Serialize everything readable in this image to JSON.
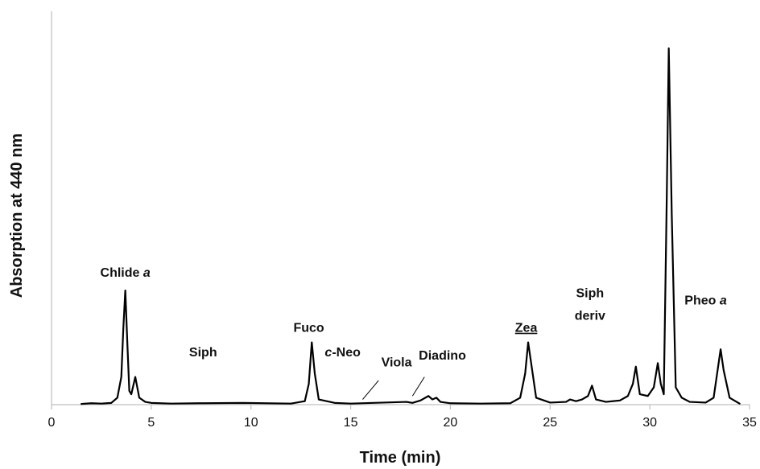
{
  "chart_data": {
    "type": "line",
    "title": "",
    "xlabel": "Time (min)",
    "ylabel": "Absorption at 440 nm",
    "xlim": [
      0,
      35
    ],
    "ylim": [
      0,
      100
    ],
    "x_ticks": [
      0,
      5,
      10,
      15,
      20,
      25,
      30,
      35
    ],
    "y_ticks_shown": false,
    "grid": false,
    "legend": "none",
    "line_color": "#000000",
    "series": [
      {
        "x": [
          1.5,
          2.0,
          2.5,
          3.0,
          3.3,
          3.5,
          3.6,
          3.7,
          3.8,
          3.9,
          4.0,
          4.2,
          4.4,
          4.7,
          5.0,
          6.0,
          7.4,
          9.6,
          12.0,
          12.7,
          12.9,
          13.05,
          13.2,
          13.4,
          13.8,
          14.2,
          15.0,
          17.8,
          18.1,
          18.5,
          18.9,
          19.1,
          19.3,
          19.5,
          20.0,
          21.5,
          23.0,
          23.5,
          23.75,
          23.9,
          24.05,
          24.3,
          25.0,
          25.8,
          26.0,
          26.3,
          26.6,
          26.9,
          27.1,
          27.3,
          27.8,
          28.5,
          28.9,
          29.15,
          29.3,
          29.5,
          29.9,
          30.2,
          30.4,
          30.55,
          30.7,
          30.85,
          30.95,
          31.1,
          31.3,
          31.6,
          32.0,
          32.8,
          33.2,
          33.4,
          33.55,
          33.7,
          34.0,
          34.5
        ],
        "y": [
          0.2,
          0.4,
          0.3,
          0.5,
          2,
          8,
          22,
          33,
          18,
          4,
          3,
          8,
          2,
          0.8,
          0.5,
          0.3,
          0.4,
          0.5,
          0.3,
          1,
          6,
          18,
          9,
          1.5,
          1,
          0.5,
          0.3,
          0.8,
          0.5,
          1.2,
          2.5,
          1.5,
          2,
          0.8,
          0.4,
          0.3,
          0.4,
          2,
          9,
          18,
          12,
          2,
          0.6,
          0.8,
          1.5,
          1,
          1.5,
          2.5,
          5.5,
          1.5,
          0.8,
          1.2,
          2.5,
          6,
          11,
          3,
          2.5,
          5,
          12,
          6,
          3,
          60,
          103,
          55,
          5,
          2,
          0.8,
          0.6,
          2,
          10,
          16,
          10,
          2,
          0.3
        ]
      }
    ],
    "annotations": [
      {
        "text": "Chlide ",
        "italic": "a",
        "x": 3.7,
        "y": 37
      },
      {
        "text": "Siph",
        "x": 7.6,
        "y": 14
      },
      {
        "text": "Fuco",
        "x": 12.9,
        "y": 21
      },
      {
        "text": "-Neo",
        "italic_prefix": "c",
        "x": 14.6,
        "y": 14
      },
      {
        "text": "Viola",
        "x": 17.3,
        "y": 11
      },
      {
        "text": "Diadino",
        "x": 19.6,
        "y": 13
      },
      {
        "text": "Zea",
        "x": 23.8,
        "y": 21,
        "underline": true
      },
      {
        "text": "Siph",
        "x": 27.0,
        "y": 31
      },
      {
        "text": "deriv",
        "x": 27.0,
        "y": 24.5
      },
      {
        "text": "Pheo ",
        "italic": "a",
        "x": 32.8,
        "y": 29
      }
    ]
  }
}
